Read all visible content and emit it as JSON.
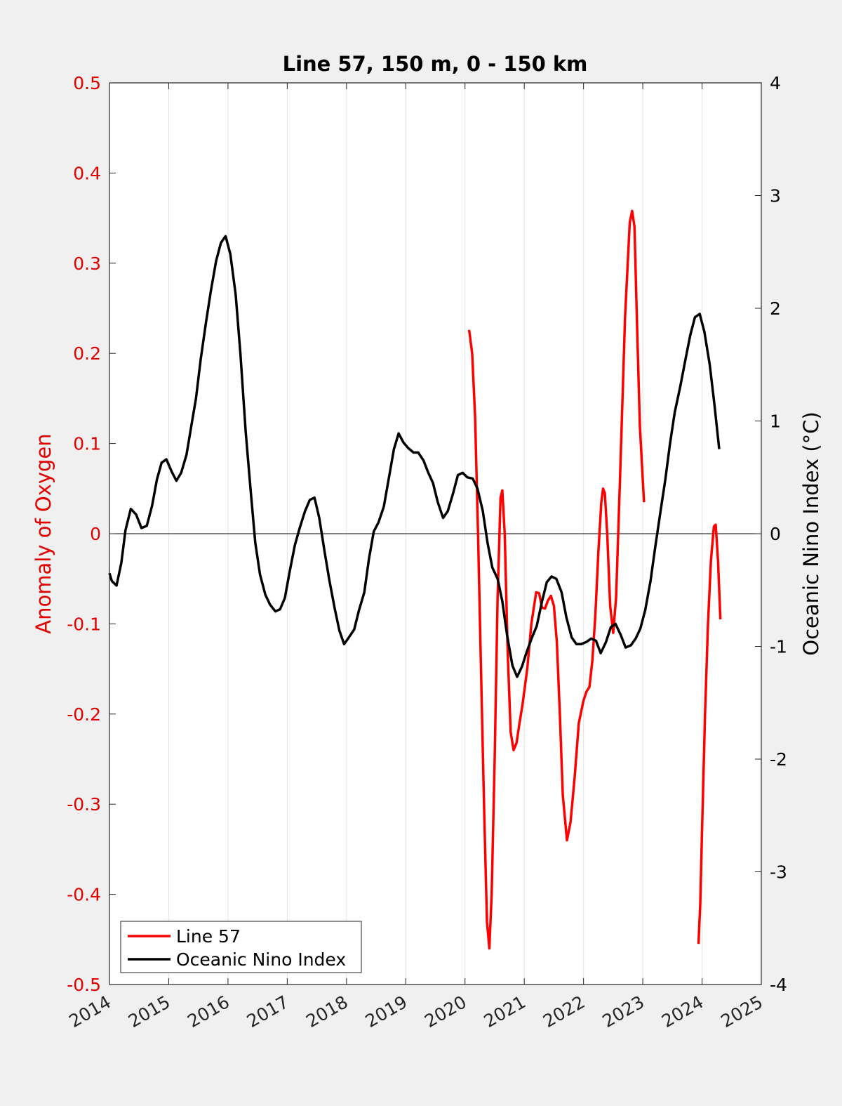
{
  "chart_data": {
    "type": "line",
    "title": "Line 57, 150 m, 0 - 150 km",
    "xlabel": "",
    "xlim": [
      2014,
      2025
    ],
    "xticks": [
      "2014",
      "2015",
      "2016",
      "2017",
      "2018",
      "2019",
      "2020",
      "2021",
      "2022",
      "2023",
      "2024",
      "2025"
    ],
    "left_axis": {
      "label": "Anomaly of Oxygen",
      "color": "#e00000",
      "ylim": [
        -0.5,
        0.5
      ],
      "ticks": [
        "0.5",
        "0.4",
        "0.3",
        "0.2",
        "0.1",
        "0",
        "-0.1",
        "-0.2",
        "-0.3",
        "-0.4",
        "-0.5"
      ]
    },
    "right_axis": {
      "label": "Oceanic Nino Index (°C)",
      "color": "#000000",
      "ylim": [
        -4,
        4
      ],
      "ticks": [
        "4",
        "3",
        "2",
        "1",
        "0",
        "-1",
        "-2",
        "-3",
        "-4"
      ]
    },
    "grid": "vertical",
    "legend_position": "bottom-left",
    "series": [
      {
        "name": "Line 57",
        "axis": "left",
        "color": "#ff0000",
        "segments": [
          [
            [
              2020.07,
              0.226
            ],
            [
              2020.12,
              0.2
            ],
            [
              2020.17,
              0.13
            ],
            [
              2020.22,
              0.0
            ],
            [
              2020.27,
              -0.15
            ],
            [
              2020.32,
              -0.3
            ],
            [
              2020.37,
              -0.43
            ],
            [
              2020.41,
              -0.46
            ],
            [
              2020.45,
              -0.4
            ],
            [
              2020.5,
              -0.25
            ],
            [
              2020.55,
              -0.07
            ],
            [
              2020.6,
              0.04
            ],
            [
              2020.63,
              0.048
            ],
            [
              2020.67,
              0.0
            ],
            [
              2020.72,
              -0.13
            ],
            [
              2020.77,
              -0.22
            ],
            [
              2020.82,
              -0.24
            ],
            [
              2020.87,
              -0.232
            ],
            [
              2020.92,
              -0.21
            ],
            [
              2020.97,
              -0.19
            ],
            [
              2021.05,
              -0.15
            ],
            [
              2021.12,
              -0.1
            ],
            [
              2021.2,
              -0.065
            ],
            [
              2021.25,
              -0.066
            ],
            [
              2021.3,
              -0.082
            ],
            [
              2021.35,
              -0.083
            ],
            [
              2021.4,
              -0.074
            ],
            [
              2021.45,
              -0.069
            ],
            [
              2021.5,
              -0.08
            ],
            [
              2021.55,
              -0.12
            ],
            [
              2021.6,
              -0.2
            ],
            [
              2021.65,
              -0.29
            ],
            [
              2021.72,
              -0.34
            ],
            [
              2021.78,
              -0.32
            ],
            [
              2021.85,
              -0.27
            ],
            [
              2021.92,
              -0.21
            ],
            [
              2022.0,
              -0.185
            ],
            [
              2022.05,
              -0.175
            ],
            [
              2022.1,
              -0.17
            ],
            [
              2022.15,
              -0.14
            ],
            [
              2022.2,
              -0.09
            ],
            [
              2022.25,
              -0.02
            ],
            [
              2022.3,
              0.035
            ],
            [
              2022.33,
              0.05
            ],
            [
              2022.36,
              0.045
            ],
            [
              2022.4,
              0.0
            ],
            [
              2022.45,
              -0.08
            ],
            [
              2022.5,
              -0.11
            ],
            [
              2022.55,
              -0.07
            ],
            [
              2022.62,
              0.07
            ],
            [
              2022.7,
              0.24
            ],
            [
              2022.78,
              0.345
            ],
            [
              2022.82,
              0.358
            ],
            [
              2022.86,
              0.34
            ],
            [
              2022.9,
              0.24
            ],
            [
              2022.95,
              0.12
            ],
            [
              2023.02,
              0.035
            ]
          ],
          [
            [
              2023.94,
              -0.455
            ],
            [
              2023.97,
              -0.41
            ],
            [
              2024.0,
              -0.33
            ],
            [
              2024.05,
              -0.2
            ],
            [
              2024.1,
              -0.1
            ],
            [
              2024.15,
              -0.03
            ],
            [
              2024.2,
              0.008
            ],
            [
              2024.23,
              0.01
            ],
            [
              2024.27,
              -0.03
            ],
            [
              2024.31,
              -0.095
            ]
          ]
        ]
      },
      {
        "name": "Oceanic Nino Index",
        "axis": "right",
        "color": "#000000",
        "points": [
          [
            2014.0,
            -0.35
          ],
          [
            2014.04,
            -0.42
          ],
          [
            2014.12,
            -0.46
          ],
          [
            2014.2,
            -0.26
          ],
          [
            2014.27,
            0.03
          ],
          [
            2014.36,
            0.22
          ],
          [
            2014.45,
            0.17
          ],
          [
            2014.54,
            0.05
          ],
          [
            2014.63,
            0.07
          ],
          [
            2014.72,
            0.25
          ],
          [
            2014.8,
            0.48
          ],
          [
            2014.88,
            0.63
          ],
          [
            2014.96,
            0.66
          ],
          [
            2015.05,
            0.55
          ],
          [
            2015.13,
            0.47
          ],
          [
            2015.21,
            0.54
          ],
          [
            2015.3,
            0.7
          ],
          [
            2015.38,
            0.95
          ],
          [
            2015.46,
            1.2
          ],
          [
            2015.54,
            1.55
          ],
          [
            2015.63,
            1.88
          ],
          [
            2015.71,
            2.15
          ],
          [
            2015.8,
            2.42
          ],
          [
            2015.88,
            2.58
          ],
          [
            2015.96,
            2.64
          ],
          [
            2016.04,
            2.48
          ],
          [
            2016.13,
            2.12
          ],
          [
            2016.21,
            1.6
          ],
          [
            2016.3,
            0.9
          ],
          [
            2016.38,
            0.4
          ],
          [
            2016.46,
            -0.08
          ],
          [
            2016.54,
            -0.36
          ],
          [
            2016.63,
            -0.54
          ],
          [
            2016.71,
            -0.63
          ],
          [
            2016.8,
            -0.69
          ],
          [
            2016.88,
            -0.67
          ],
          [
            2016.96,
            -0.57
          ],
          [
            2017.04,
            -0.34
          ],
          [
            2017.13,
            -0.1
          ],
          [
            2017.21,
            0.05
          ],
          [
            2017.3,
            0.2
          ],
          [
            2017.38,
            0.3
          ],
          [
            2017.46,
            0.32
          ],
          [
            2017.54,
            0.14
          ],
          [
            2017.63,
            -0.16
          ],
          [
            2017.71,
            -0.41
          ],
          [
            2017.8,
            -0.66
          ],
          [
            2017.88,
            -0.86
          ],
          [
            2017.96,
            -0.98
          ],
          [
            2018.04,
            -0.92
          ],
          [
            2018.13,
            -0.85
          ],
          [
            2018.21,
            -0.68
          ],
          [
            2018.3,
            -0.52
          ],
          [
            2018.38,
            -0.22
          ],
          [
            2018.46,
            0.02
          ],
          [
            2018.54,
            0.1
          ],
          [
            2018.63,
            0.24
          ],
          [
            2018.71,
            0.48
          ],
          [
            2018.8,
            0.75
          ],
          [
            2018.88,
            0.89
          ],
          [
            2018.96,
            0.81
          ],
          [
            2019.04,
            0.76
          ],
          [
            2019.13,
            0.72
          ],
          [
            2019.21,
            0.72
          ],
          [
            2019.3,
            0.65
          ],
          [
            2019.38,
            0.54
          ],
          [
            2019.46,
            0.45
          ],
          [
            2019.54,
            0.28
          ],
          [
            2019.63,
            0.14
          ],
          [
            2019.71,
            0.2
          ],
          [
            2019.8,
            0.36
          ],
          [
            2019.88,
            0.52
          ],
          [
            2019.96,
            0.54
          ],
          [
            2020.04,
            0.5
          ],
          [
            2020.13,
            0.49
          ],
          [
            2020.21,
            0.4
          ],
          [
            2020.3,
            0.2
          ],
          [
            2020.38,
            -0.08
          ],
          [
            2020.46,
            -0.3
          ],
          [
            2020.55,
            -0.4
          ],
          [
            2020.63,
            -0.6
          ],
          [
            2020.71,
            -0.9
          ],
          [
            2020.8,
            -1.17
          ],
          [
            2020.88,
            -1.27
          ],
          [
            2020.96,
            -1.18
          ],
          [
            2021.04,
            -1.05
          ],
          [
            2021.13,
            -0.92
          ],
          [
            2021.21,
            -0.82
          ],
          [
            2021.3,
            -0.6
          ],
          [
            2021.38,
            -0.43
          ],
          [
            2021.46,
            -0.38
          ],
          [
            2021.54,
            -0.4
          ],
          [
            2021.63,
            -0.52
          ],
          [
            2021.71,
            -0.74
          ],
          [
            2021.8,
            -0.92
          ],
          [
            2021.88,
            -0.98
          ],
          [
            2021.96,
            -0.98
          ],
          [
            2022.05,
            -0.96
          ],
          [
            2022.13,
            -0.93
          ],
          [
            2022.21,
            -0.95
          ],
          [
            2022.29,
            -1.06
          ],
          [
            2022.38,
            -0.96
          ],
          [
            2022.46,
            -0.83
          ],
          [
            2022.54,
            -0.8
          ],
          [
            2022.63,
            -0.9
          ],
          [
            2022.71,
            -1.01
          ],
          [
            2022.8,
            -0.99
          ],
          [
            2022.88,
            -0.93
          ],
          [
            2022.96,
            -0.84
          ],
          [
            2023.04,
            -0.68
          ],
          [
            2023.13,
            -0.42
          ],
          [
            2023.21,
            -0.12
          ],
          [
            2023.3,
            0.2
          ],
          [
            2023.38,
            0.48
          ],
          [
            2023.46,
            0.8
          ],
          [
            2023.54,
            1.08
          ],
          [
            2023.63,
            1.3
          ],
          [
            2023.71,
            1.52
          ],
          [
            2023.8,
            1.76
          ],
          [
            2023.88,
            1.92
          ],
          [
            2023.96,
            1.95
          ],
          [
            2024.04,
            1.79
          ],
          [
            2024.13,
            1.5
          ],
          [
            2024.21,
            1.14
          ],
          [
            2024.29,
            0.75
          ]
        ]
      }
    ]
  }
}
